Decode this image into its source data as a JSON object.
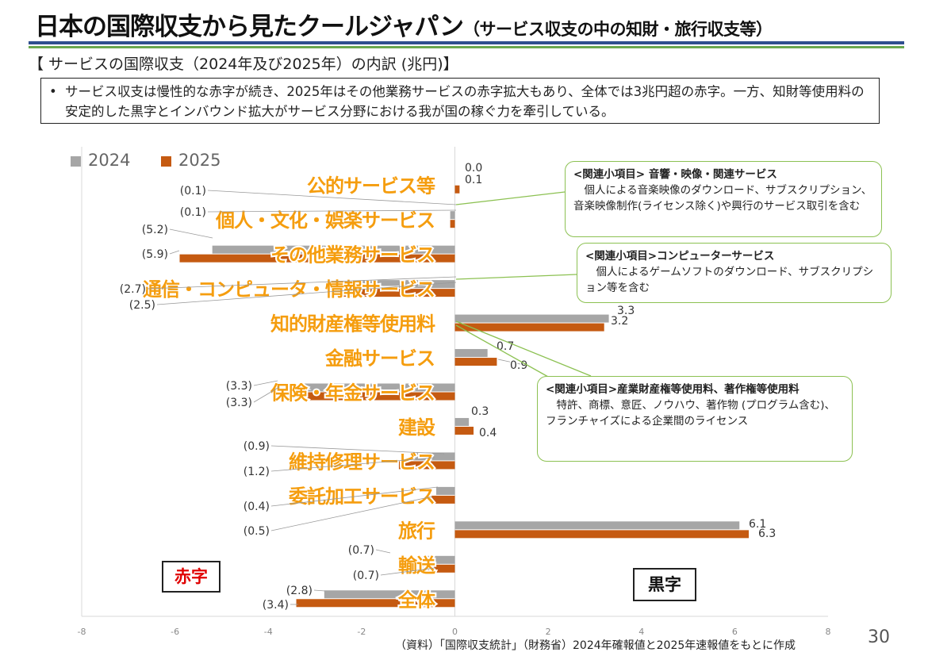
{
  "header": {
    "title": "日本の国際収支から見たクールジャパン",
    "subtitle": "（サービス収支の中の知財・旅行収支等）",
    "section_title": "【 サービスの国際収支（2024年及び2025年）の内訳 (兆円)】",
    "summary_bullet": "•",
    "summary": "サービス収支は慢性的な赤字が続き、2025年はその他業務サービスの赤字拡大もあり、全体では3兆円超の赤字。一方、知財等使用料の安定的した黒字とインバウンド拡大がサービス分野における我が国の稼ぐ力を牽引している。"
  },
  "callouts": [
    {
      "head": "<関連小項目> 音響・映像・関連サービス",
      "body": "個人による音楽映像のダウンロード、サブスクリプション、音楽映像制作(ライセンス除く)や興行のサービス取引を含む"
    },
    {
      "head": "<関連小項目>コンピューターサービス",
      "body": "個人によるゲームソフトのダウンロード、サブスクリプション等を含む"
    },
    {
      "head": "<関連小項目>産業財産権等使用料、著作権等使用料",
      "body": "特許、商標、意匠、ノウハウ、著作物 (プログラム含む)、フランチャイズによる企業間のライセンス"
    }
  ],
  "labels": {
    "deficit": "赤字",
    "surplus": "黒字"
  },
  "footnote": "（資料）「国際収支統計」（財務省）2024年確報値と2025年速報値をもとに作成",
  "page_number": "30",
  "colors": {
    "series_2024": "#a6a6a6",
    "series_2025": "#c55a11",
    "category_label": "#f59d0e",
    "callout_border": "#8cc152",
    "deficit_label": "#e00000",
    "title_rule_blue": "#2f4f8f",
    "title_rule_green": "#6aa84f"
  },
  "chart_data": {
    "type": "bar",
    "orientation": "horizontal",
    "categories": [
      "公的サービス等",
      "個人・文化・娯楽サービス",
      "その他業務サービス",
      "通信・コンピュータ・情報サービス",
      "知的財産権等使用料",
      "金融サービス",
      "保険・年金サービス",
      "建設",
      "維持修理サービス",
      "委託加工サービス",
      "旅行",
      "輸送",
      "全体"
    ],
    "series": [
      {
        "name": "2024",
        "values": [
          0.0,
          -0.1,
          -5.2,
          -2.7,
          3.3,
          0.7,
          -3.3,
          0.3,
          -0.9,
          -0.4,
          6.1,
          -0.7,
          -2.8
        ],
        "labels": [
          "0.0",
          "(0.1)",
          "(5.2)",
          "(2.7)",
          "3.3",
          "0.7",
          "(3.3)",
          "0.3",
          "(0.9)",
          "(0.4)",
          "6.1",
          "(0.7)",
          "(2.8)"
        ]
      },
      {
        "name": "2025",
        "values": [
          0.1,
          -0.1,
          -5.9,
          -2.5,
          3.2,
          0.9,
          -3.3,
          0.4,
          -1.2,
          -0.5,
          6.3,
          -0.7,
          -3.4
        ],
        "labels": [
          "0.1",
          "(0.1)",
          "(5.9)",
          "(2.5)",
          "3.2",
          "0.9",
          "(3.3)",
          "0.4",
          "(1.2)",
          "(0.5)",
          "6.3",
          "(0.7)",
          "(3.4)"
        ]
      }
    ],
    "xlim": [
      -8,
      8
    ],
    "xticks": [
      "-8",
      "-6",
      "-4",
      "-2",
      "0",
      "2",
      "4",
      "6",
      "8"
    ],
    "legend": "top-left",
    "grid": false
  }
}
